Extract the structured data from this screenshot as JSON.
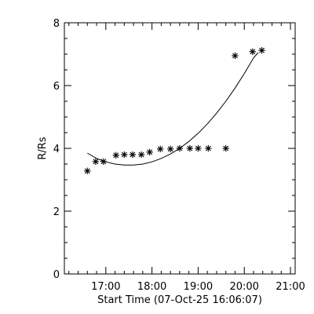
{
  "chart_data": {
    "type": "scatter",
    "xlabel": "Start Time (07-Oct-25 16:06:07)",
    "ylabel": "R/Rs",
    "xlim": [
      16.1019,
      21.1019
    ],
    "ylim": [
      0,
      8
    ],
    "x_ticks": [
      {
        "value": 17.0,
        "label": "17:00"
      },
      {
        "value": 18.0,
        "label": "18:00"
      },
      {
        "value": 19.0,
        "label": "19:00"
      },
      {
        "value": 20.0,
        "label": "20:00"
      },
      {
        "value": 21.0,
        "label": "21:00"
      }
    ],
    "y_ticks": [
      {
        "value": 0,
        "label": "0"
      },
      {
        "value": 2,
        "label": "2"
      },
      {
        "value": 4,
        "label": "4"
      },
      {
        "value": 6,
        "label": "6"
      },
      {
        "value": 8,
        "label": "8"
      }
    ],
    "minor_x_step": 0.2,
    "minor_y_step": 0.5,
    "marker": "asterisk",
    "points": [
      {
        "x": 16.6,
        "y": 3.28
      },
      {
        "x": 16.78,
        "y": 3.58
      },
      {
        "x": 16.95,
        "y": 3.58
      },
      {
        "x": 17.22,
        "y": 3.78
      },
      {
        "x": 17.4,
        "y": 3.8
      },
      {
        "x": 17.58,
        "y": 3.8
      },
      {
        "x": 17.77,
        "y": 3.8
      },
      {
        "x": 17.95,
        "y": 3.88
      },
      {
        "x": 18.18,
        "y": 3.98
      },
      {
        "x": 18.4,
        "y": 3.98
      },
      {
        "x": 18.6,
        "y": 4.0
      },
      {
        "x": 18.82,
        "y": 4.0
      },
      {
        "x": 19.0,
        "y": 4.0
      },
      {
        "x": 19.22,
        "y": 4.0
      },
      {
        "x": 19.6,
        "y": 4.0
      },
      {
        "x": 19.8,
        "y": 6.95
      },
      {
        "x": 20.18,
        "y": 7.08
      },
      {
        "x": 20.38,
        "y": 7.12
      }
    ],
    "fit_curve": {
      "type": "line",
      "points": [
        {
          "x": 16.6,
          "y": 3.85
        },
        {
          "x": 16.8,
          "y": 3.68
        },
        {
          "x": 17.0,
          "y": 3.57
        },
        {
          "x": 17.2,
          "y": 3.5
        },
        {
          "x": 17.4,
          "y": 3.47
        },
        {
          "x": 17.6,
          "y": 3.47
        },
        {
          "x": 17.8,
          "y": 3.5
        },
        {
          "x": 18.0,
          "y": 3.57
        },
        {
          "x": 18.2,
          "y": 3.68
        },
        {
          "x": 18.4,
          "y": 3.82
        },
        {
          "x": 18.6,
          "y": 4.0
        },
        {
          "x": 18.8,
          "y": 4.22
        },
        {
          "x": 19.0,
          "y": 4.48
        },
        {
          "x": 19.2,
          "y": 4.78
        },
        {
          "x": 19.4,
          "y": 5.12
        },
        {
          "x": 19.6,
          "y": 5.5
        },
        {
          "x": 19.8,
          "y": 5.92
        },
        {
          "x": 20.0,
          "y": 6.38
        },
        {
          "x": 20.2,
          "y": 6.88
        },
        {
          "x": 20.3,
          "y": 7.05
        }
      ]
    }
  }
}
